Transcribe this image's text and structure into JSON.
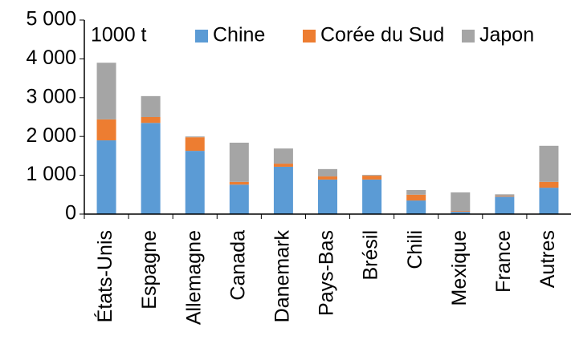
{
  "chart_data": {
    "type": "stacked-bar",
    "unit_label": "1000 t",
    "categories": [
      "États-Unis",
      "Espagne",
      "Allemagne",
      "Canada",
      "Danemark",
      "Pays-Bas",
      "Brésil",
      "Chili",
      "Mexique",
      "France",
      "Autres"
    ],
    "series": [
      {
        "name": "Chine",
        "color": "#5b9bd5",
        "values": [
          1900,
          2350,
          1630,
          760,
          1220,
          890,
          890,
          350,
          60,
          450,
          680
        ]
      },
      {
        "name": "Corée du Sud",
        "color": "#ed7d31",
        "values": [
          540,
          150,
          350,
          70,
          80,
          80,
          100,
          150,
          20,
          20,
          150
        ]
      },
      {
        "name": "Japon",
        "color": "#a5a5a5",
        "values": [
          1460,
          540,
          20,
          1010,
          390,
          190,
          20,
          120,
          480,
          40,
          930
        ]
      }
    ],
    "ylim": [
      0,
      5000
    ],
    "yticks": [
      0,
      {
        "value": 1000,
        "label": "1 000"
      },
      {
        "value": 2000,
        "label": "2 000"
      },
      {
        "value": 3000,
        "label": "3 000"
      },
      {
        "value": 4000,
        "label": "4 000"
      },
      {
        "value": 5000,
        "label": "5 000"
      }
    ],
    "legend": "top",
    "grid": false
  }
}
